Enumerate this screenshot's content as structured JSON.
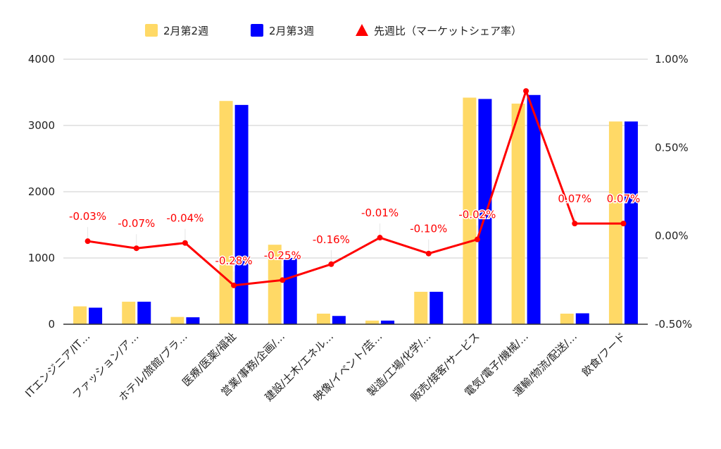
{
  "chart_data": {
    "type": "bar",
    "categories": [
      "ITエンジニア/IT…",
      "ファッション/ア…",
      "ホテル/旅館/ブラ…",
      "医療/医薬/福祉",
      "営業/事務/企画/…",
      "建設/土木/エネル…",
      "映像/イベント/芸…",
      "製造/工場/化学/…",
      "販売/接客/サービス",
      "電気/電子/機械/…",
      "運輸/物流/配送/…",
      "飲食/フード"
    ],
    "series": [
      {
        "name": "2月第2週",
        "type": "bar",
        "axis": "left",
        "color": "#ffd966",
        "values": [
          270,
          340,
          110,
          3370,
          1200,
          160,
          55,
          490,
          3420,
          3330,
          160,
          3060
        ]
      },
      {
        "name": "2月第3週",
        "type": "bar",
        "axis": "left",
        "color": "#0000ff",
        "values": [
          250,
          340,
          105,
          3310,
          1000,
          125,
          55,
          490,
          3400,
          3460,
          165,
          3060
        ]
      },
      {
        "name": "先週比（マーケットシェア率）",
        "type": "line",
        "axis": "right",
        "color": "#ff0000",
        "marker": "triangle",
        "values": [
          -0.03,
          -0.07,
          -0.04,
          -0.28,
          -0.25,
          -0.16,
          -0.01,
          -0.1,
          -0.02,
          0.82,
          0.07,
          0.07
        ],
        "labels": [
          "-0.03%",
          "-0.07%",
          "-0.04%",
          "-0.28%",
          "-0.25%",
          "-0.16%",
          "-0.01%",
          "-0.10%",
          "-0.02%",
          "",
          "0.07%",
          "0.07%"
        ]
      }
    ],
    "left_axis": {
      "ylim": [
        0,
        4000
      ],
      "ticks": [
        "0",
        "1000",
        "2000",
        "3000",
        "4000"
      ]
    },
    "right_axis": {
      "ylim": [
        -0.5,
        1.0
      ],
      "ticks": [
        "-0.50%",
        "0.00%",
        "0.50%",
        "1.00%"
      ]
    },
    "grid": true,
    "legend_position": "top"
  }
}
